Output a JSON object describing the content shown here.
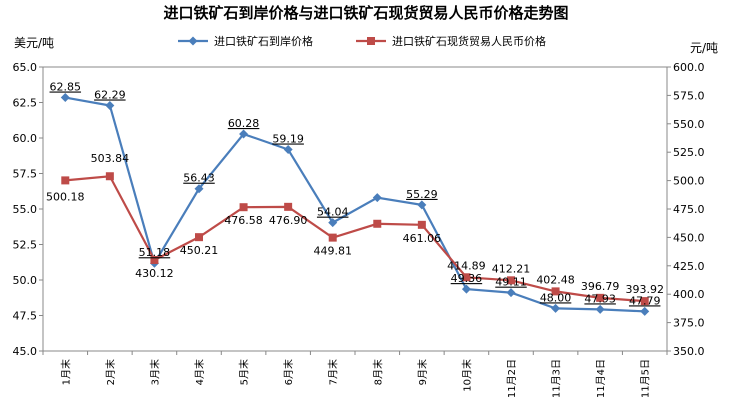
{
  "chart_data": {
    "type": "line",
    "title": "进口铁矿石到岸价格与进口铁矿石现货贸易人民币价格走势图",
    "categories": [
      "1月末",
      "2月末",
      "3月末",
      "4月末",
      "5月末",
      "6月末",
      "7月末",
      "8月末",
      "9月末",
      "10月末",
      "11月2日",
      "11月3日",
      "11月4日",
      "11月5日"
    ],
    "y_left": {
      "label": "美元/吨",
      "range": [
        45.0,
        65.0
      ],
      "ticks": [
        "45.0",
        "47.5",
        "50.0",
        "52.5",
        "55.0",
        "57.5",
        "60.0",
        "62.5",
        "65.0"
      ]
    },
    "y_right": {
      "label": "元/吨",
      "range": [
        350.0,
        600.0
      ],
      "ticks": [
        "350.0",
        "375.0",
        "400.0",
        "425.0",
        "450.0",
        "475.0",
        "500.0",
        "525.0",
        "550.0",
        "575.0",
        "600.0"
      ]
    },
    "legend_position": "top",
    "series": [
      {
        "name": "进口铁矿石到岸价格",
        "axis": "left",
        "color": "#4a7ebb",
        "marker": "diamond",
        "values": [
          62.85,
          62.29,
          51.18,
          56.43,
          60.28,
          59.19,
          54.04,
          55.8,
          55.29,
          49.36,
          49.11,
          48.0,
          47.93,
          47.79
        ],
        "labels": [
          "62.85",
          "62.29",
          "51.18",
          "56.43",
          "60.28",
          "59.19",
          "54.04",
          "",
          "55.29",
          "49.36",
          "49.11",
          "48.00",
          "47.93",
          "47.79"
        ]
      },
      {
        "name": "进口铁矿石现货贸易人民币价格",
        "axis": "right",
        "color": "#be4b48",
        "marker": "square",
        "values": [
          500.18,
          503.84,
          430.12,
          450.21,
          476.58,
          476.9,
          449.81,
          462.0,
          461.06,
          414.89,
          412.21,
          402.48,
          396.79,
          393.92
        ],
        "labels": [
          "500.18",
          "503.84",
          "430.12",
          "450.21",
          "476.58",
          "476.90",
          "449.81",
          "",
          "461.06",
          "414.89",
          "412.21",
          "402.48",
          "396.79",
          "393.92"
        ]
      }
    ]
  }
}
